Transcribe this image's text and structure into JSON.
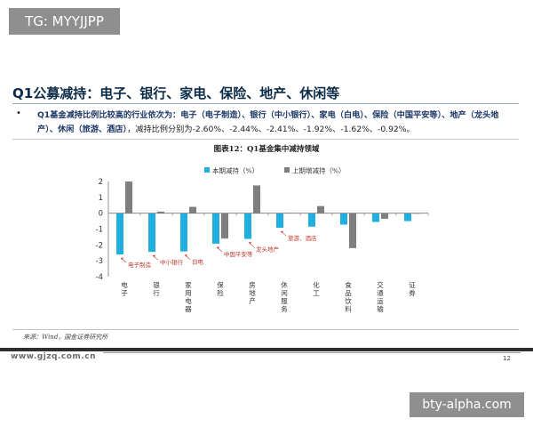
{
  "overlay": {
    "tag": "TG: MYYJJPP",
    "watermark": "bty-alpha.com"
  },
  "slide": {
    "title": "Q1公募减持：电子、银行、家电、保险、地产、休闲等",
    "bullet_symbol": "•",
    "bullet_lead": "Q1基金减持比例比较高的行业依次为：",
    "bullet_items": "电子（电子制造）、银行（中小银行）、家电（白电）、保险（中国平安等）、地产（龙头地产）、休闲（旅游、酒店）",
    "bullet_tail": "，减持比例分别为-2.60%、-2.44%、-2.41%、-1.92%、-1.62%、-0.92%。",
    "figure_title": "图表12：Q1基金集中减持领域",
    "source": "来源：Wind，国金证券研究所",
    "site": "www.gjzq.com.cn",
    "page_number": "12"
  },
  "colors": {
    "current": "#1fb0e0",
    "previous": "#7f7f7f",
    "annotation": "#c0392b"
  },
  "chart_data": {
    "type": "bar",
    "title": "图表12：Q1基金集中减持领域",
    "categories": [
      "电子",
      "银行",
      "家用电器",
      "保险",
      "房地产",
      "休闲服务",
      "化工",
      "食品饮料",
      "交通运输",
      "证券"
    ],
    "series": [
      {
        "name": "本期减持（%）",
        "values": [
          -2.6,
          -2.44,
          -2.41,
          -1.92,
          -1.62,
          -0.92,
          -0.85,
          -0.72,
          -0.55,
          -0.5
        ]
      },
      {
        "name": "上期增减持（%）",
        "values": [
          2.0,
          0.1,
          0.4,
          -1.6,
          1.75,
          0.02,
          0.45,
          -2.2,
          -0.35,
          0.0
        ]
      }
    ],
    "ylim": [
      -4,
      2
    ],
    "yticks": [
      2,
      1,
      0,
      -1,
      -2,
      -3,
      -4
    ],
    "legend_position": "top",
    "annotations": [
      {
        "category_index": 0,
        "text": "电子制造"
      },
      {
        "category_index": 1,
        "text": "中小银行"
      },
      {
        "category_index": 2,
        "text": "白电"
      },
      {
        "category_index": 3,
        "text": "中国平安等"
      },
      {
        "category_index": 4,
        "text": "龙头地产"
      },
      {
        "category_index": 5,
        "text": "旅游、酒店"
      }
    ]
  }
}
